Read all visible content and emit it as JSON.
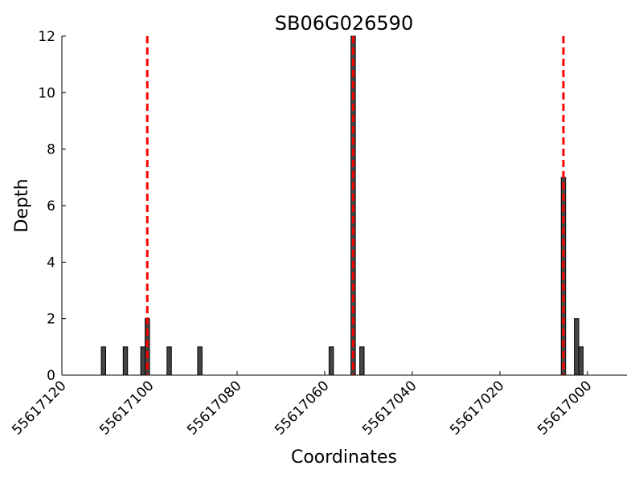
{
  "chart_data": {
    "type": "bar",
    "title": "SB06G026590",
    "x_label": "Coordinates",
    "y_label": "Depth",
    "x": [
      55617110,
      55617105,
      55617101,
      55617100,
      55617095,
      55617088,
      55617058,
      55617053,
      55617051,
      55617005,
      55617002,
      55617001
    ],
    "values": [
      1,
      1,
      1,
      2,
      1,
      1,
      1,
      12,
      1,
      7,
      2,
      1
    ],
    "bar_width": 1,
    "color": "#444444",
    "edge_color": "#000000",
    "xlim": [
      55617120,
      55616991
    ],
    "xticks": [
      55617120,
      55617100,
      55617080,
      55617060,
      55617040,
      55617020,
      55617000
    ],
    "ylim": [
      0,
      12
    ],
    "yticks": [
      0,
      2,
      4,
      6,
      8,
      10,
      12
    ],
    "vlines": {
      "values": [
        55617100.5,
        55617053.5,
        55617005.5
      ],
      "color": "#ff0000",
      "style": "dashed"
    }
  }
}
